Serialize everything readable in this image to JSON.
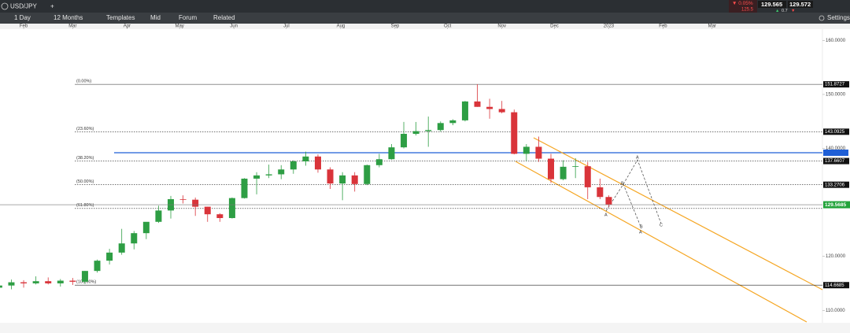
{
  "toolbar": {
    "symbol": "USD/JPY",
    "interval": "1 Day",
    "range": "12 Months",
    "buttons": [
      "Templates",
      "Mid",
      "Forum",
      "Related"
    ],
    "change": "▼ 0.05%",
    "change_sub": "125.5",
    "bid": "129.565",
    "ask": "129.572",
    "spread": "0.7",
    "settings": "Settings"
  },
  "chart_data": {
    "type": "candlestick",
    "xlim": [
      17.5,
      487
    ],
    "xticks": [
      {
        "value": 31,
        "label": "Feb"
      },
      {
        "value": 59,
        "label": "Mar"
      },
      {
        "value": 90,
        "label": "Apr"
      },
      {
        "value": 120,
        "label": "May"
      },
      {
        "value": 151,
        "label": "Jun"
      },
      {
        "value": 181,
        "label": "Jul"
      },
      {
        "value": 212,
        "label": "Aug"
      },
      {
        "value": 243,
        "label": "Sep"
      },
      {
        "value": 273,
        "label": "Oct"
      },
      {
        "value": 304,
        "label": "Nov"
      },
      {
        "value": 334,
        "label": "Dec"
      },
      {
        "value": 365,
        "label": "2023"
      },
      {
        "value": 396,
        "label": "Feb"
      },
      {
        "value": 424,
        "label": "Mar"
      }
    ],
    "ylim": [
      107.7,
      162.1
    ],
    "yticks": [
      {
        "value": 110,
        "label": "110.0000"
      },
      {
        "value": 120,
        "label": "120.0000"
      },
      {
        "value": 140,
        "label": "140.0000"
      },
      {
        "value": 150,
        "label": "150.0000"
      },
      {
        "value": 160,
        "label": "160.0000"
      }
    ],
    "up_color": "#2e9e44",
    "down_color": "#d9343a",
    "candles": {
      "x": [
        17,
        24,
        31,
        38,
        45,
        52,
        59,
        66,
        73,
        80,
        87,
        94,
        101,
        108,
        115,
        122,
        129,
        136,
        143,
        150,
        157,
        164,
        171,
        178,
        185,
        192,
        199,
        206,
        213,
        220,
        227,
        234,
        241,
        248,
        255,
        262,
        269,
        276,
        283,
        290,
        297,
        304,
        311,
        318,
        325,
        332,
        339,
        346,
        353,
        360,
        365
      ],
      "open": [
        114.2,
        114.6,
        115.2,
        115.0,
        115.4,
        115.0,
        115.5,
        115.3,
        117.3,
        119.2,
        120.7,
        122.4,
        124.3,
        126.4,
        128.5,
        130.6,
        130.5,
        129.2,
        127.8,
        127.1,
        130.8,
        134.4,
        135.0,
        135.2,
        136.1,
        137.6,
        138.5,
        136.1,
        133.5,
        135.0,
        133.4,
        136.9,
        138.0,
        140.2,
        142.7,
        143.2,
        143.4,
        144.7,
        145.2,
        148.7,
        147.7,
        147.3,
        146.7,
        139.0,
        140.3,
        138.1,
        134.3,
        136.6,
        136.7,
        132.8,
        131.0
      ],
      "high": [
        114.9,
        115.7,
        115.6,
        116.3,
        116.1,
        115.8,
        116.0,
        117.3,
        119.4,
        121.4,
        125.1,
        124.7,
        126.3,
        129.4,
        131.2,
        131.3,
        130.9,
        129.2,
        128.0,
        130.9,
        134.5,
        135.6,
        137.0,
        136.9,
        137.8,
        139.4,
        138.9,
        136.5,
        135.6,
        135.6,
        137.0,
        139.0,
        140.8,
        144.9,
        144.9,
        145.9,
        145.0,
        145.4,
        148.8,
        151.9,
        149.2,
        148.8,
        147.2,
        140.8,
        142.2,
        139.0,
        137.8,
        138.2,
        137.5,
        134.4,
        131.3
      ],
      "low": [
        113.5,
        113.9,
        114.2,
        114.8,
        114.8,
        114.4,
        114.7,
        114.9,
        117.0,
        118.5,
        120.3,
        121.3,
        123.2,
        126.2,
        127.0,
        129.8,
        127.5,
        126.4,
        126.4,
        127.0,
        130.7,
        131.5,
        134.5,
        134.3,
        135.3,
        136.8,
        135.5,
        132.5,
        130.4,
        132.0,
        133.2,
        136.5,
        137.9,
        140.0,
        142.4,
        140.3,
        143.1,
        144.3,
        145.0,
        147.7,
        145.5,
        146.5,
        138.9,
        137.7,
        137.5,
        133.6,
        134.1,
        134.5,
        130.6,
        130.6,
        129.2
      ],
      "close": [
        114.6,
        115.2,
        115.0,
        115.4,
        115.0,
        115.5,
        115.3,
        117.3,
        119.2,
        120.7,
        122.4,
        124.3,
        126.4,
        128.5,
        130.6,
        130.5,
        129.2,
        127.8,
        127.1,
        130.8,
        134.4,
        135.0,
        135.2,
        136.1,
        137.6,
        138.5,
        136.1,
        133.5,
        135.0,
        133.4,
        136.9,
        138.0,
        140.2,
        142.7,
        143.2,
        143.4,
        144.7,
        145.2,
        148.7,
        147.7,
        147.3,
        146.7,
        139.0,
        140.3,
        138.1,
        134.3,
        136.6,
        136.7,
        132.8,
        131.0,
        129.6
      ]
    },
    "fib_levels": [
      {
        "label": "(0.00%)",
        "value": 151.8727
      },
      {
        "label": "(23.60%)",
        "value": 143.0925
      },
      {
        "label": "(38.20%)",
        "value": 137.6607
      },
      {
        "label": "(50.00%)",
        "value": 133.2706
      },
      {
        "label": "(61.80%)",
        "value": 128.8805
      },
      {
        "label": "(100.00%)",
        "value": 114.6685
      }
    ],
    "last_price": 129.5685,
    "annotations": [
      "A",
      "B",
      "A",
      "B",
      "C",
      "A"
    ]
  }
}
